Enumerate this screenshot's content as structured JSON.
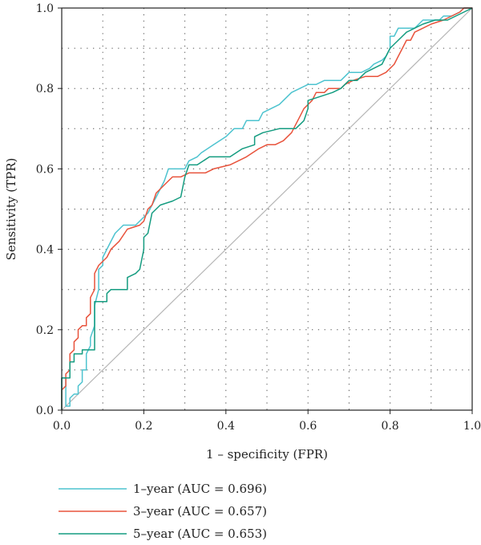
{
  "chart_data": {
    "type": "line",
    "title": "",
    "xlabel": "1 – specificity (FPR)",
    "ylabel": "Sensitivity (TPR)",
    "xlim": [
      0,
      1
    ],
    "ylim": [
      0,
      1
    ],
    "x_ticks": [
      "0.0",
      "0.2",
      "0.4",
      "0.6",
      "0.8",
      "1.0"
    ],
    "y_ticks": [
      "0.0",
      "0.2",
      "0.4",
      "0.6",
      "0.8",
      "1.0"
    ],
    "grid": "dotted",
    "legend_position": "bottom-left",
    "reference_line": {
      "from": [
        0,
        0
      ],
      "to": [
        1,
        1
      ],
      "color": "#b5b5b5"
    },
    "series": [
      {
        "name": "1–year (AUC = 0.696)",
        "color": "#4dc3cf",
        "points": [
          [
            0,
            0
          ],
          [
            0,
            0.08
          ],
          [
            0.01,
            0.08
          ],
          [
            0.01,
            0.01
          ],
          [
            0.02,
            0.01
          ],
          [
            0.02,
            0.03
          ],
          [
            0.03,
            0.04
          ],
          [
            0.04,
            0.04
          ],
          [
            0.04,
            0.06
          ],
          [
            0.05,
            0.07
          ],
          [
            0.05,
            0.1
          ],
          [
            0.06,
            0.1
          ],
          [
            0.06,
            0.14
          ],
          [
            0.07,
            0.16
          ],
          [
            0.07,
            0.18
          ],
          [
            0.08,
            0.21
          ],
          [
            0.08,
            0.26
          ],
          [
            0.09,
            0.3
          ],
          [
            0.09,
            0.35
          ],
          [
            0.1,
            0.36
          ],
          [
            0.1,
            0.38
          ],
          [
            0.11,
            0.4
          ],
          [
            0.12,
            0.42
          ],
          [
            0.13,
            0.44
          ],
          [
            0.15,
            0.46
          ],
          [
            0.18,
            0.46
          ],
          [
            0.19,
            0.47
          ],
          [
            0.2,
            0.48
          ],
          [
            0.21,
            0.49
          ],
          [
            0.22,
            0.51
          ],
          [
            0.23,
            0.53
          ],
          [
            0.24,
            0.55
          ],
          [
            0.25,
            0.57
          ],
          [
            0.26,
            0.6
          ],
          [
            0.3,
            0.6
          ],
          [
            0.31,
            0.62
          ],
          [
            0.33,
            0.63
          ],
          [
            0.34,
            0.64
          ],
          [
            0.37,
            0.66
          ],
          [
            0.4,
            0.68
          ],
          [
            0.42,
            0.7
          ],
          [
            0.44,
            0.7
          ],
          [
            0.45,
            0.72
          ],
          [
            0.48,
            0.72
          ],
          [
            0.49,
            0.74
          ],
          [
            0.53,
            0.76
          ],
          [
            0.54,
            0.77
          ],
          [
            0.56,
            0.79
          ],
          [
            0.58,
            0.8
          ],
          [
            0.6,
            0.81
          ],
          [
            0.62,
            0.81
          ],
          [
            0.64,
            0.82
          ],
          [
            0.68,
            0.82
          ],
          [
            0.69,
            0.83
          ],
          [
            0.7,
            0.84
          ],
          [
            0.73,
            0.84
          ],
          [
            0.75,
            0.85
          ],
          [
            0.76,
            0.86
          ],
          [
            0.78,
            0.87
          ],
          [
            0.79,
            0.88
          ],
          [
            0.8,
            0.9
          ],
          [
            0.8,
            0.93
          ],
          [
            0.81,
            0.93
          ],
          [
            0.82,
            0.95
          ],
          [
            0.86,
            0.95
          ],
          [
            0.88,
            0.97
          ],
          [
            0.92,
            0.97
          ],
          [
            0.93,
            0.98
          ],
          [
            0.95,
            0.98
          ],
          [
            0.97,
            0.99
          ],
          [
            0.98,
            1.0
          ],
          [
            1,
            1
          ]
        ]
      },
      {
        "name": "3–year (AUC = 0.657)",
        "color": "#e8533c",
        "points": [
          [
            0,
            0
          ],
          [
            0,
            0.05
          ],
          [
            0.01,
            0.06
          ],
          [
            0.01,
            0.09
          ],
          [
            0.02,
            0.1
          ],
          [
            0.02,
            0.14
          ],
          [
            0.03,
            0.15
          ],
          [
            0.03,
            0.17
          ],
          [
            0.04,
            0.18
          ],
          [
            0.04,
            0.2
          ],
          [
            0.05,
            0.21
          ],
          [
            0.06,
            0.21
          ],
          [
            0.06,
            0.23
          ],
          [
            0.07,
            0.24
          ],
          [
            0.07,
            0.28
          ],
          [
            0.08,
            0.3
          ],
          [
            0.08,
            0.34
          ],
          [
            0.09,
            0.36
          ],
          [
            0.1,
            0.37
          ],
          [
            0.11,
            0.38
          ],
          [
            0.12,
            0.4
          ],
          [
            0.14,
            0.42
          ],
          [
            0.16,
            0.45
          ],
          [
            0.19,
            0.46
          ],
          [
            0.2,
            0.47
          ],
          [
            0.21,
            0.5
          ],
          [
            0.22,
            0.51
          ],
          [
            0.23,
            0.54
          ],
          [
            0.25,
            0.56
          ],
          [
            0.27,
            0.58
          ],
          [
            0.29,
            0.58
          ],
          [
            0.31,
            0.59
          ],
          [
            0.35,
            0.59
          ],
          [
            0.37,
            0.6
          ],
          [
            0.41,
            0.61
          ],
          [
            0.43,
            0.62
          ],
          [
            0.45,
            0.63
          ],
          [
            0.48,
            0.65
          ],
          [
            0.5,
            0.66
          ],
          [
            0.52,
            0.66
          ],
          [
            0.54,
            0.67
          ],
          [
            0.56,
            0.69
          ],
          [
            0.57,
            0.71
          ],
          [
            0.58,
            0.73
          ],
          [
            0.59,
            0.75
          ],
          [
            0.61,
            0.77
          ],
          [
            0.62,
            0.79
          ],
          [
            0.64,
            0.79
          ],
          [
            0.65,
            0.8
          ],
          [
            0.68,
            0.8
          ],
          [
            0.69,
            0.81
          ],
          [
            0.71,
            0.82
          ],
          [
            0.74,
            0.83
          ],
          [
            0.77,
            0.83
          ],
          [
            0.79,
            0.84
          ],
          [
            0.8,
            0.85
          ],
          [
            0.81,
            0.86
          ],
          [
            0.82,
            0.88
          ],
          [
            0.83,
            0.9
          ],
          [
            0.84,
            0.92
          ],
          [
            0.85,
            0.92
          ],
          [
            0.86,
            0.94
          ],
          [
            0.88,
            0.95
          ],
          [
            0.9,
            0.96
          ],
          [
            0.93,
            0.97
          ],
          [
            0.95,
            0.98
          ],
          [
            0.97,
            0.99
          ],
          [
            0.98,
            1.0
          ],
          [
            1,
            1
          ]
        ]
      },
      {
        "name": "5–year (AUC = 0.653)",
        "color": "#149c80",
        "points": [
          [
            0,
            0
          ],
          [
            0,
            0.08
          ],
          [
            0.02,
            0.08
          ],
          [
            0.02,
            0.12
          ],
          [
            0.03,
            0.12
          ],
          [
            0.03,
            0.14
          ],
          [
            0.05,
            0.14
          ],
          [
            0.05,
            0.15
          ],
          [
            0.08,
            0.15
          ],
          [
            0.08,
            0.27
          ],
          [
            0.11,
            0.27
          ],
          [
            0.11,
            0.29
          ],
          [
            0.12,
            0.3
          ],
          [
            0.16,
            0.3
          ],
          [
            0.16,
            0.33
          ],
          [
            0.18,
            0.34
          ],
          [
            0.19,
            0.35
          ],
          [
            0.2,
            0.4
          ],
          [
            0.2,
            0.43
          ],
          [
            0.21,
            0.44
          ],
          [
            0.22,
            0.49
          ],
          [
            0.24,
            0.51
          ],
          [
            0.27,
            0.52
          ],
          [
            0.29,
            0.53
          ],
          [
            0.3,
            0.58
          ],
          [
            0.31,
            0.61
          ],
          [
            0.33,
            0.61
          ],
          [
            0.36,
            0.63
          ],
          [
            0.41,
            0.63
          ],
          [
            0.44,
            0.65
          ],
          [
            0.47,
            0.66
          ],
          [
            0.47,
            0.68
          ],
          [
            0.49,
            0.69
          ],
          [
            0.53,
            0.7
          ],
          [
            0.57,
            0.7
          ],
          [
            0.59,
            0.72
          ],
          [
            0.6,
            0.75
          ],
          [
            0.6,
            0.77
          ],
          [
            0.63,
            0.78
          ],
          [
            0.66,
            0.79
          ],
          [
            0.68,
            0.8
          ],
          [
            0.69,
            0.81
          ],
          [
            0.7,
            0.82
          ],
          [
            0.72,
            0.82
          ],
          [
            0.74,
            0.84
          ],
          [
            0.76,
            0.85
          ],
          [
            0.78,
            0.86
          ],
          [
            0.79,
            0.88
          ],
          [
            0.8,
            0.9
          ],
          [
            0.82,
            0.92
          ],
          [
            0.84,
            0.94
          ],
          [
            0.86,
            0.95
          ],
          [
            0.88,
            0.96
          ],
          [
            0.91,
            0.97
          ],
          [
            0.94,
            0.97
          ],
          [
            0.96,
            0.98
          ],
          [
            0.98,
            0.99
          ],
          [
            1,
            1
          ]
        ]
      }
    ]
  }
}
